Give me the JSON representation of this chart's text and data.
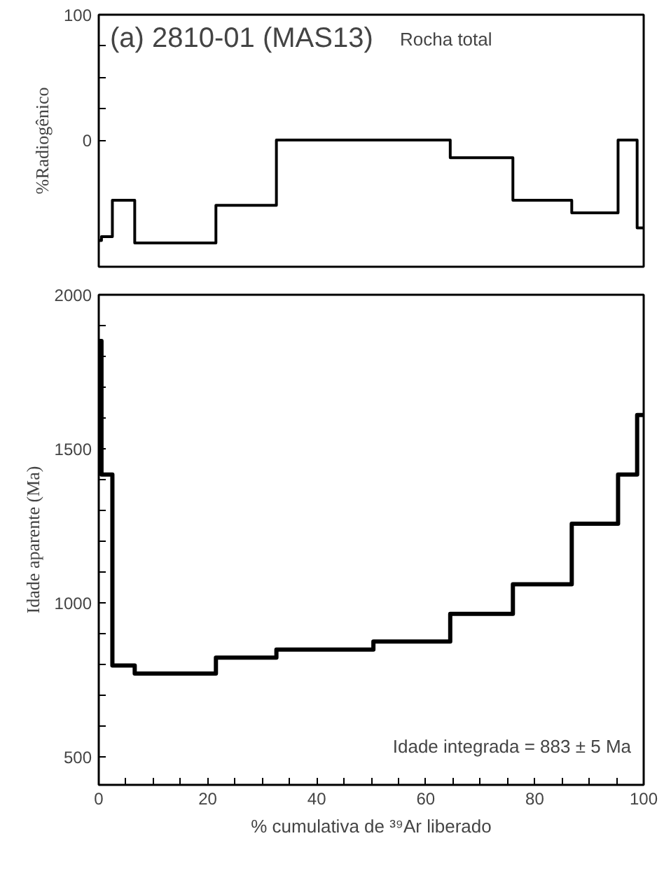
{
  "chart_data": [
    {
      "type": "step",
      "title": "(a) 2810-01 (MAS13)",
      "subtitle": "Rocha total",
      "ylabel": "%Radiogênico",
      "x": [
        0,
        0.5,
        2.5,
        6.6,
        21.5,
        32.6,
        50.4,
        64.5,
        76,
        86.8,
        95.3,
        98.8,
        100
      ],
      "values": [
        -80,
        -77,
        -48,
        -82,
        -52,
        0,
        0,
        -14,
        -48,
        -58,
        0,
        -70,
        -70
      ],
      "color": "#000000",
      "xlim": [
        0,
        100
      ],
      "ylim": [
        -101,
        100
      ],
      "yticks": [
        100,
        {
          "value": 75,
          "label": null
        },
        {
          "value": 50,
          "label": null
        },
        {
          "value": 25,
          "label": null
        },
        0
      ],
      "tick_labels": "y",
      "grid": false
    },
    {
      "type": "step",
      "ylabel": "Idade aparente (Ma)",
      "xlabel": "% cumulativa de ³⁹Ar liberado",
      "annotations": [
        "Idade integrada = 883 ± 5 Ma"
      ],
      "x": [
        0,
        0.5,
        2.5,
        6.6,
        21.5,
        32.6,
        50.4,
        64.5,
        76,
        86.8,
        95.3,
        98.8,
        100
      ],
      "values": [
        1850,
        1417,
        797,
        771,
        823,
        849,
        875,
        965,
        1061,
        1257,
        1417,
        1610,
        1610
      ],
      "color": "#000000",
      "xlim": [
        0,
        100
      ],
      "ylim": [
        410,
        2000
      ],
      "xticks": [
        0,
        {
          "value": 5,
          "label": null
        },
        {
          "value": 10,
          "label": null
        },
        {
          "value": 15,
          "label": null
        },
        20,
        {
          "value": 25,
          "label": null
        },
        {
          "value": 30,
          "label": null
        },
        {
          "value": 35,
          "label": null
        },
        40,
        {
          "value": 45,
          "label": null
        },
        {
          "value": 50,
          "label": null
        },
        {
          "value": 55,
          "label": null
        },
        60,
        {
          "value": 65,
          "label": null
        },
        {
          "value": 70,
          "label": null
        },
        {
          "value": 75,
          "label": null
        },
        80,
        {
          "value": 85,
          "label": null
        },
        {
          "value": 90,
          "label": null
        },
        {
          "value": 95,
          "label": null
        },
        100
      ],
      "yticks": [
        {
          "value": 600,
          "label": null
        },
        {
          "value": 700,
          "label": null
        },
        {
          "value": 800,
          "label": null
        },
        {
          "value": 900,
          "label": null
        },
        1000,
        {
          "value": 1100,
          "label": null
        },
        {
          "value": 1200,
          "label": null
        },
        {
          "value": 1300,
          "label": null
        },
        {
          "value": 1400,
          "label": null
        },
        1500,
        {
          "value": 1600,
          "label": null
        },
        {
          "value": 1700,
          "label": null
        },
        {
          "value": 1800,
          "label": null
        },
        {
          "value": 1900,
          "label": null
        },
        2000,
        500
      ],
      "grid": false
    }
  ]
}
